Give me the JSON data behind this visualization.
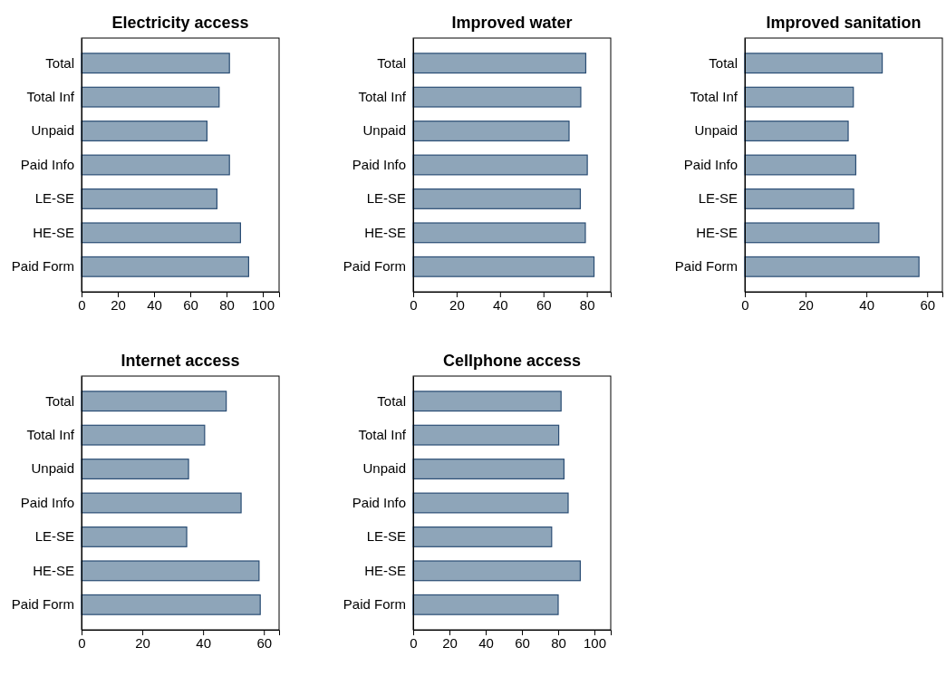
{
  "chart_data": [
    {
      "type": "bar",
      "orientation": "horizontal",
      "title": "Electricity access",
      "categories": [
        "Total",
        "Total Inf",
        "Unpaid",
        "Paid Info",
        "LE-SE",
        "HE-SE",
        "Paid Form"
      ],
      "values": [
        81.6,
        75.9,
        69.2,
        81.6,
        74.7,
        87.7,
        92.2
      ],
      "color": "#8ea5b9",
      "xlim": [
        0,
        109
      ],
      "xticks": [
        0,
        20,
        40,
        60,
        80,
        100
      ],
      "grid": false
    },
    {
      "type": "bar",
      "orientation": "horizontal",
      "title": "Improved water",
      "categories": [
        "Total",
        "Total Inf",
        "Unpaid",
        "Paid Info",
        "LE-SE",
        "HE-SE",
        "Paid Form"
      ],
      "values": [
        79.5,
        77.2,
        71.8,
        80.2,
        77.0,
        79.3,
        83.3
      ],
      "color": "#8ea5b9",
      "xlim": [
        0,
        91
      ],
      "xticks": [
        0,
        20,
        40,
        60,
        80
      ],
      "grid": false
    },
    {
      "type": "bar",
      "orientation": "horizontal",
      "title": "Improved sanitation",
      "categories": [
        "Total",
        "Total Inf",
        "Unpaid",
        "Paid Info",
        "LE-SE",
        "HE-SE",
        "Paid Form"
      ],
      "values": [
        45.2,
        35.7,
        34.0,
        36.5,
        35.8,
        44.1,
        57.3
      ],
      "color": "#8ea5b9",
      "xlim": [
        0,
        65
      ],
      "xticks": [
        0,
        20,
        40,
        60
      ],
      "grid": false
    },
    {
      "type": "bar",
      "orientation": "horizontal",
      "title": "Internet access",
      "categories": [
        "Total",
        "Total Inf",
        "Unpaid",
        "Paid Info",
        "LE-SE",
        "HE-SE",
        "Paid Form"
      ],
      "values": [
        47.6,
        40.5,
        35.2,
        52.5,
        34.6,
        58.4,
        58.8
      ],
      "color": "#8ea5b9",
      "xlim": [
        0,
        65
      ],
      "xticks": [
        0,
        20,
        40,
        60
      ],
      "grid": false
    },
    {
      "type": "bar",
      "orientation": "horizontal",
      "title": "Cellphone access",
      "categories": [
        "Total",
        "Total Inf",
        "Unpaid",
        "Paid Info",
        "LE-SE",
        "HE-SE",
        "Paid Form"
      ],
      "values": [
        81.6,
        80.3,
        83.2,
        85.5,
        76.4,
        92.2,
        80.0
      ],
      "color": "#8ea5b9",
      "xlim": [
        0,
        109
      ],
      "xticks": [
        0,
        20,
        40,
        60,
        80,
        100
      ],
      "grid": false
    }
  ]
}
